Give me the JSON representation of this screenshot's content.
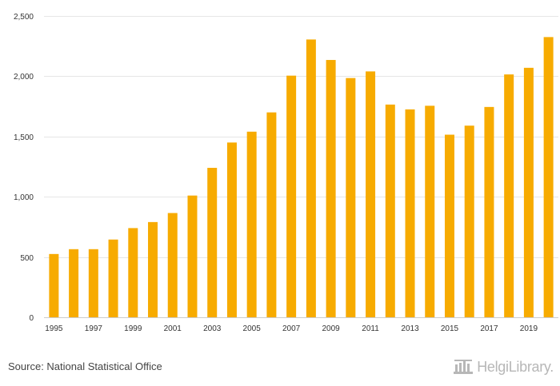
{
  "chart_data": {
    "type": "bar",
    "categories": [
      "1995",
      "1996",
      "1997",
      "1998",
      "1999",
      "2000",
      "2001",
      "2002",
      "2003",
      "2004",
      "2005",
      "2006",
      "2007",
      "2008",
      "2009",
      "2010",
      "2011",
      "2012",
      "2013",
      "2014",
      "2015",
      "2016",
      "2017",
      "2018",
      "2019",
      "2020"
    ],
    "values": [
      525,
      565,
      565,
      645,
      740,
      790,
      865,
      1010,
      1240,
      1450,
      1540,
      1700,
      2005,
      2305,
      2135,
      1985,
      2040,
      1765,
      1725,
      1755,
      1515,
      1590,
      1745,
      2015,
      2070,
      2325
    ],
    "x_tick_labels": [
      "1995",
      "1997",
      "1999",
      "2001",
      "2003",
      "2005",
      "2007",
      "2009",
      "2011",
      "2013",
      "2015",
      "2017",
      "2019"
    ],
    "y_ticks": [
      0,
      500,
      1000,
      1500,
      2000,
      2500
    ],
    "y_tick_labels": [
      "0",
      "500",
      "1,000",
      "1,500",
      "2,000",
      "2,500"
    ],
    "ylim": [
      0,
      2500
    ],
    "title": "",
    "xlabel": "",
    "ylabel": "",
    "grid": true,
    "bar_color": "#f7ab00"
  },
  "footer": {
    "source": "Source: National Statistical Office",
    "logo_text": "HelgiLibrary.",
    "logo_icon": "library-building-icon"
  }
}
